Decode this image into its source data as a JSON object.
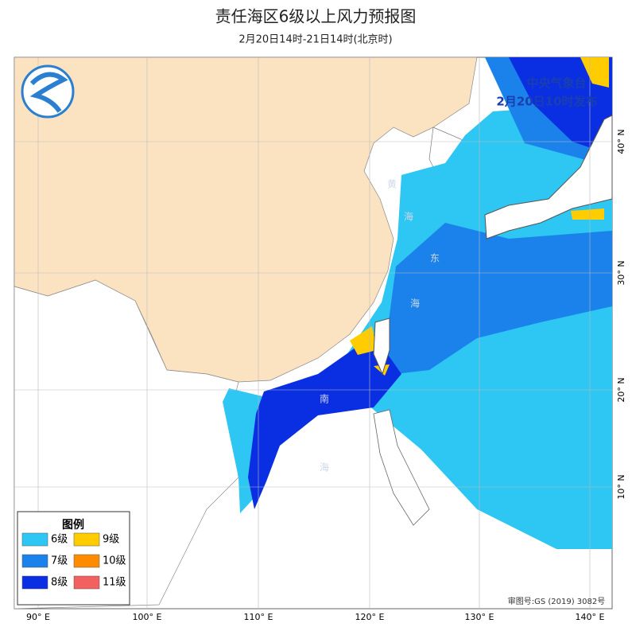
{
  "header": {
    "title": "责任海区6级以上风力预报图",
    "subtitle": "2月20日14时-21日14时(北京时)"
  },
  "publisher": {
    "name": "中央气象台",
    "issued": "2月20日10时发布"
  },
  "legend": {
    "title": "图例",
    "items": [
      {
        "label": "6级",
        "color": "#2ec6f2"
      },
      {
        "label": "9级",
        "color": "#ffcc00"
      },
      {
        "label": "7级",
        "color": "#1a82ea"
      },
      {
        "label": "10级",
        "color": "#ff8c00"
      },
      {
        "label": "8级",
        "color": "#0a2ee2"
      },
      {
        "label": "11级",
        "color": "#f26060"
      }
    ]
  },
  "map": {
    "lon_labels": [
      "90° E",
      "100° E",
      "110° E",
      "120° E",
      "130° E",
      "140° E"
    ],
    "lat_labels": [
      "40° N",
      "30° N",
      "20° N",
      "10° N"
    ],
    "sea_labels": [
      "黄",
      "海",
      "东",
      "海",
      "南",
      "海"
    ],
    "approval": "审图号:GS (2019) 3082号"
  }
}
